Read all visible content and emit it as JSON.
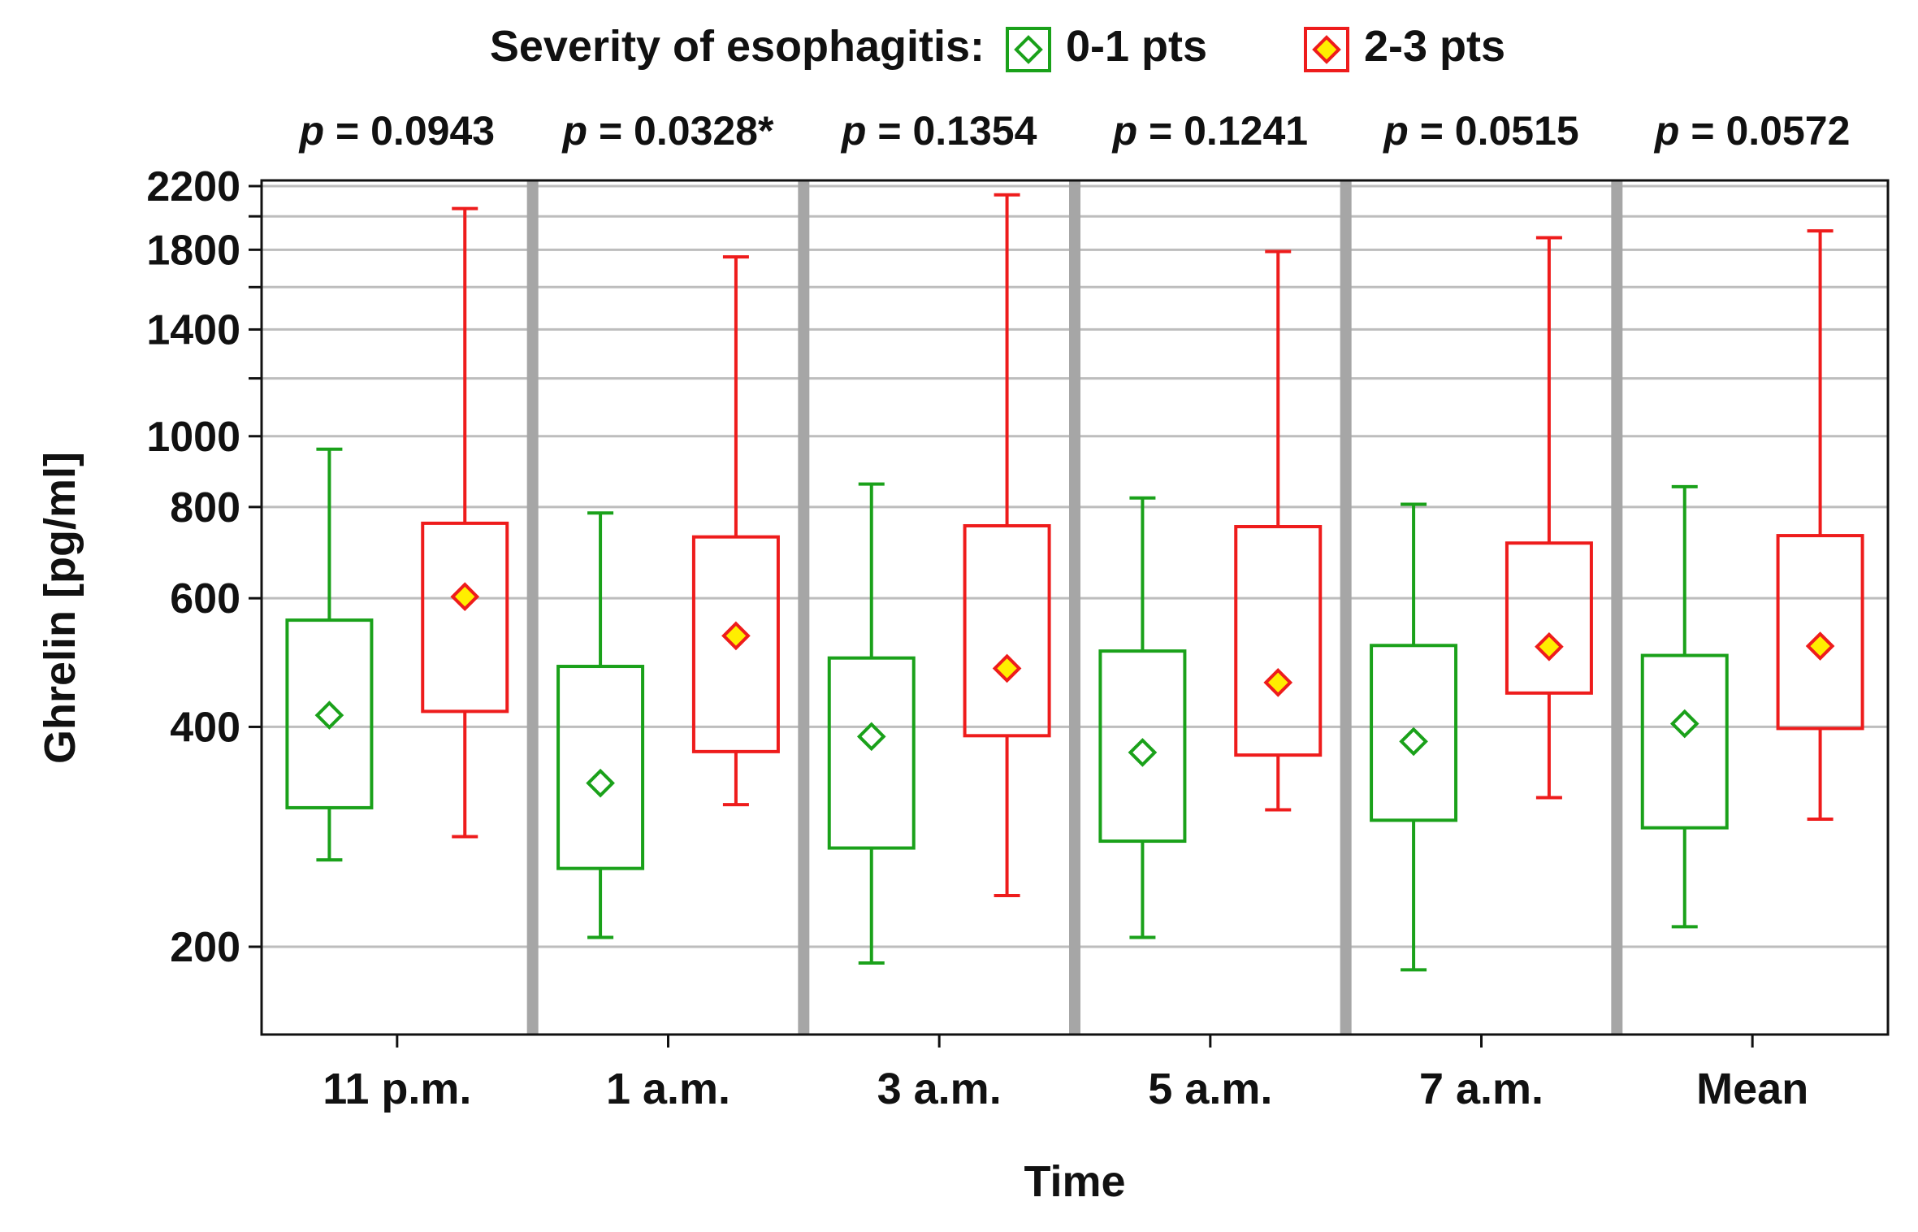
{
  "chart_data": {
    "type": "boxplot",
    "y_scale": "log",
    "ylim": [
      150,
      2300
    ],
    "ylabel": "Ghrelin [pg/ml]",
    "xlabel": "Time",
    "yticks": [
      200,
      400,
      600,
      800,
      1000,
      1400,
      1800,
      2200
    ],
    "ytick_labels": [
      "200",
      "400",
      "600",
      "800",
      "1000",
      "1400",
      "1800",
      "2200"
    ],
    "gridlines": [
      200,
      400,
      600,
      800,
      1000,
      1200,
      1400,
      1600,
      1800,
      2000,
      2200
    ],
    "legend": {
      "title": "Severity of esophagitis:",
      "entries": [
        {
          "label": "0-1 pts",
          "color": "#1aa11a",
          "marker_fill": "#ffffff"
        },
        {
          "label": "2-3 pts",
          "color": "#ee1c1c",
          "marker_fill": "#ffee00"
        }
      ]
    },
    "categories": [
      "11 p.m.",
      "1 a.m.",
      "3 a.m.",
      "5 a.m.",
      "7 a.m.",
      "Mean"
    ],
    "p_values": [
      {
        "prefix": "p",
        "text": " = 0.0943"
      },
      {
        "prefix": "p",
        "text": " = 0.0328*"
      },
      {
        "prefix": "p",
        "text": " = 0.1354"
      },
      {
        "prefix": "p",
        "text": " = 0.1241"
      },
      {
        "prefix": "p",
        "text": " = 0.0515"
      },
      {
        "prefix": "p",
        "text": " = 0.0572"
      }
    ],
    "series": [
      {
        "name": "0-1 pts",
        "color": "#1aa11a",
        "marker_fill": "#ffffff",
        "boxes": [
          {
            "whisker_low": 263,
            "q1": 310,
            "center": 415,
            "q3": 560,
            "whisker_high": 960
          },
          {
            "whisker_low": 206,
            "q1": 256,
            "center": 335,
            "q3": 484,
            "whisker_high": 785
          },
          {
            "whisker_low": 190,
            "q1": 273,
            "center": 388,
            "q3": 497,
            "whisker_high": 860
          },
          {
            "whisker_low": 206,
            "q1": 279,
            "center": 369,
            "q3": 508,
            "whisker_high": 823
          },
          {
            "whisker_low": 186,
            "q1": 298,
            "center": 382,
            "q3": 517,
            "whisker_high": 807
          },
          {
            "whisker_low": 213,
            "q1": 291,
            "center": 404,
            "q3": 501,
            "whisker_high": 853
          }
        ]
      },
      {
        "name": "2-3 pts",
        "color": "#ee1c1c",
        "marker_fill": "#ffee00",
        "boxes": [
          {
            "whisker_low": 283,
            "q1": 420,
            "center": 603,
            "q3": 760,
            "whisker_high": 2050
          },
          {
            "whisker_low": 313,
            "q1": 370,
            "center": 533,
            "q3": 728,
            "whisker_high": 1760
          },
          {
            "whisker_low": 235,
            "q1": 389,
            "center": 481,
            "q3": 754,
            "whisker_high": 2140
          },
          {
            "whisker_low": 308,
            "q1": 366,
            "center": 460,
            "q3": 752,
            "whisker_high": 1790
          },
          {
            "whisker_low": 320,
            "q1": 445,
            "center": 515,
            "q3": 714,
            "whisker_high": 1870
          },
          {
            "whisker_low": 299,
            "q1": 398,
            "center": 516,
            "q3": 731,
            "whisker_high": 1910
          }
        ]
      }
    ]
  }
}
